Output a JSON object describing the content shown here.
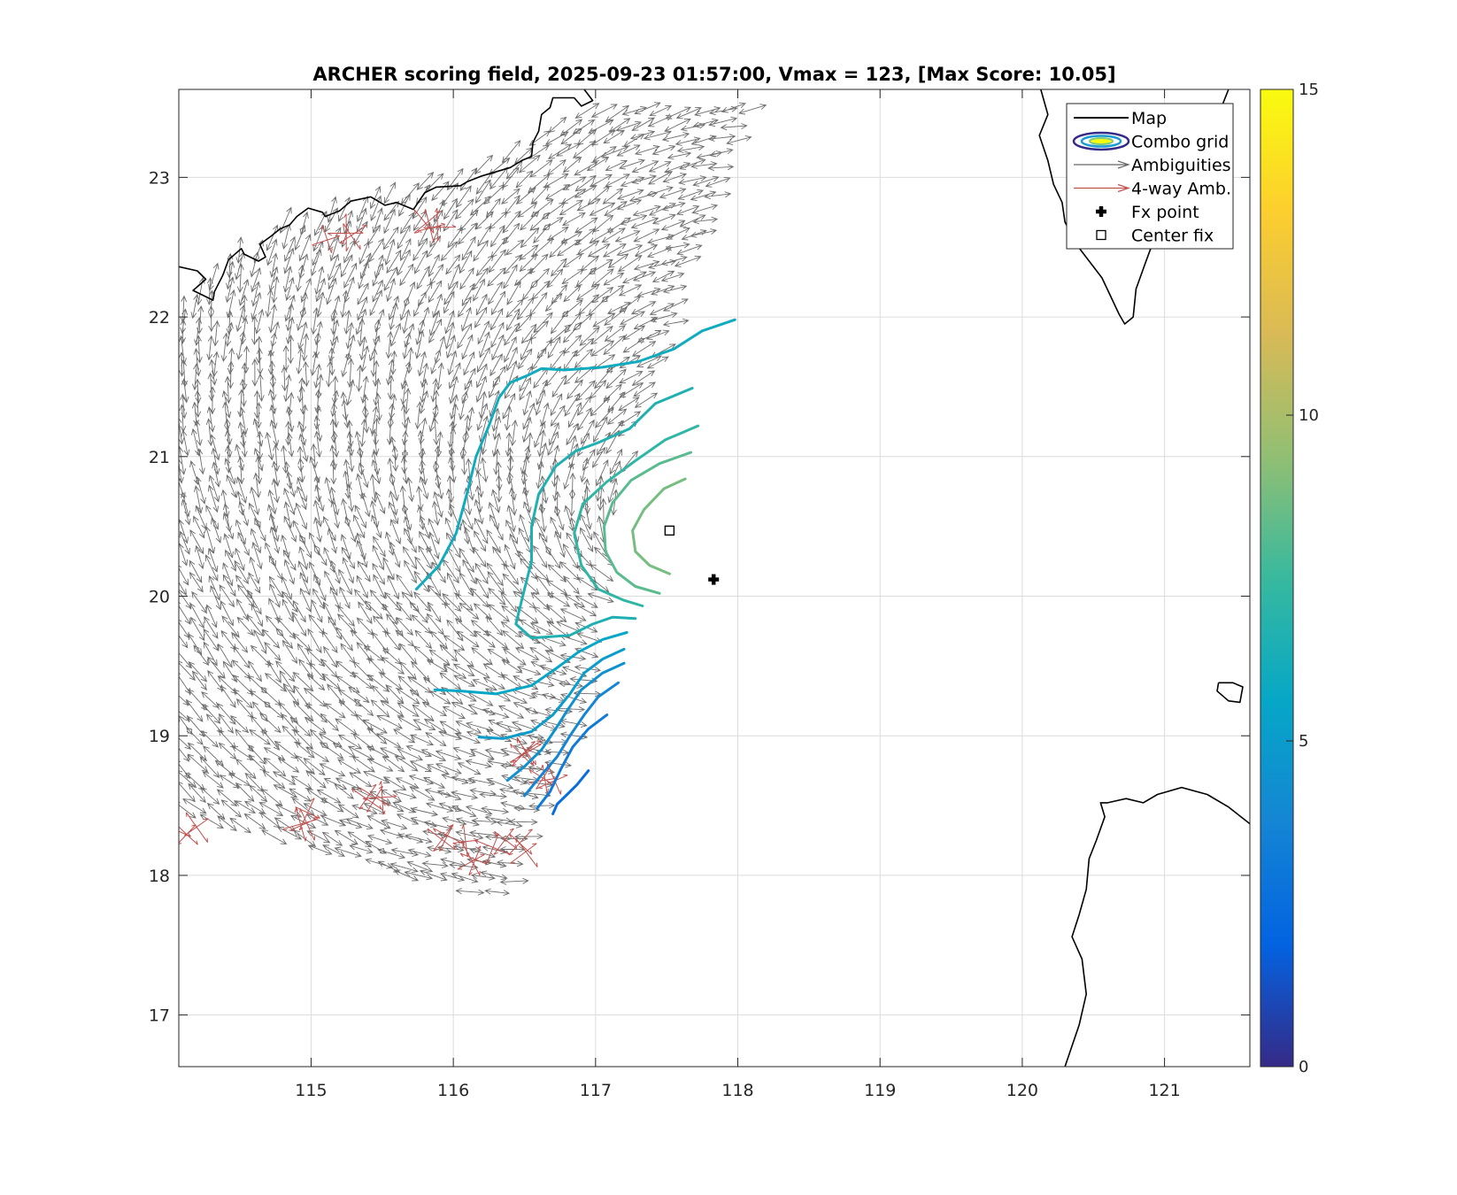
{
  "chart_data": {
    "type": "map-vector-contour",
    "title": "ARCHER scoring field, 2025-09-23 01:57:00, Vmax = 123, [Max Score: 10.05]",
    "xlabel": "",
    "ylabel": "",
    "xlim": [
      114.07,
      121.6
    ],
    "ylim": [
      16.63,
      23.63
    ],
    "x_ticks": [
      115,
      116,
      117,
      118,
      119,
      120,
      121
    ],
    "y_ticks": [
      17,
      18,
      19,
      20,
      21,
      22,
      23
    ],
    "x_tick_labels": [
      "115",
      "116",
      "117",
      "118",
      "119",
      "120",
      "121"
    ],
    "y_tick_labels": [
      "17",
      "18",
      "19",
      "20",
      "21",
      "22",
      "23"
    ],
    "grid": true,
    "legend_position": "top-right",
    "legend": [
      {
        "name": "Map",
        "symbol": "line",
        "color": "#000000"
      },
      {
        "name": "Combo grid",
        "symbol": "ellipses",
        "color": "#2c3ea8"
      },
      {
        "name": "Ambiguities",
        "symbol": "arrow",
        "color": "#666666"
      },
      {
        "name": "4-way Amb.",
        "symbol": "arrow",
        "color": "#c0504d"
      },
      {
        "name": "Fx point",
        "symbol": "plus",
        "color": "#000000"
      },
      {
        "name": "Center fix",
        "symbol": "square",
        "color": "#000000"
      }
    ],
    "colorbar": {
      "min": 0,
      "max": 15,
      "ticks": [
        0,
        5,
        10,
        15
      ],
      "tick_labels": [
        "0",
        "5",
        "10",
        "15"
      ],
      "colormap": "parula",
      "stops": [
        "#352a87",
        "#0363e1",
        "#1485d4",
        "#06a7c6",
        "#38b99e",
        "#92bf73",
        "#d9ba56",
        "#fcce2e",
        "#f9fb0e"
      ]
    },
    "fx_point": {
      "lon": 117.83,
      "lat": 20.12
    },
    "center_fix": {
      "lon": 117.52,
      "lat": 20.47
    },
    "contours": [
      {
        "level": 8.8,
        "points": [
          [
            117.63,
            20.84
          ],
          [
            117.48,
            20.77
          ],
          [
            117.34,
            20.62
          ],
          [
            117.26,
            20.47
          ],
          [
            117.28,
            20.32
          ],
          [
            117.38,
            20.22
          ],
          [
            117.52,
            20.16
          ]
        ]
      },
      {
        "level": 8.2,
        "points": [
          [
            117.67,
            21.03
          ],
          [
            117.45,
            20.95
          ],
          [
            117.25,
            20.83
          ],
          [
            117.12,
            20.67
          ],
          [
            117.06,
            20.5
          ],
          [
            117.07,
            20.32
          ],
          [
            117.15,
            20.17
          ],
          [
            117.28,
            20.07
          ],
          [
            117.45,
            20.02
          ]
        ]
      },
      {
        "level": 7.2,
        "points": [
          [
            117.72,
            21.22
          ],
          [
            117.49,
            21.12
          ],
          [
            117.28,
            20.97
          ],
          [
            117.08,
            20.82
          ],
          [
            116.91,
            20.66
          ],
          [
            116.85,
            20.45
          ],
          [
            116.9,
            20.22
          ],
          [
            117.02,
            20.05
          ],
          [
            117.2,
            19.97
          ],
          [
            117.33,
            19.93
          ]
        ]
      },
      {
        "level": 6.6,
        "points": [
          [
            117.68,
            21.49
          ],
          [
            117.42,
            21.38
          ],
          [
            117.24,
            21.2
          ],
          [
            117.02,
            21.1
          ],
          [
            116.86,
            21.04
          ],
          [
            116.72,
            20.93
          ],
          [
            116.6,
            20.73
          ],
          [
            116.55,
            20.5
          ],
          [
            116.55,
            20.25
          ],
          [
            116.5,
            20.05
          ],
          [
            116.44,
            19.8
          ],
          [
            116.55,
            19.7
          ],
          [
            116.82,
            19.72
          ],
          [
            116.98,
            19.8
          ],
          [
            117.12,
            19.85
          ],
          [
            117.28,
            19.84
          ]
        ]
      },
      {
        "level": 6.0,
        "points": [
          [
            117.98,
            21.98
          ],
          [
            117.75,
            21.9
          ],
          [
            117.55,
            21.77
          ],
          [
            117.3,
            21.68
          ],
          [
            117.05,
            21.64
          ],
          [
            116.78,
            21.62
          ],
          [
            116.62,
            21.63
          ],
          [
            116.52,
            21.58
          ],
          [
            116.4,
            21.53
          ],
          [
            116.32,
            21.42
          ],
          [
            116.25,
            21.22
          ],
          [
            116.16,
            21.0
          ],
          [
            116.1,
            20.75
          ],
          [
            116.02,
            20.45
          ],
          [
            115.9,
            20.22
          ],
          [
            115.74,
            20.05
          ]
        ]
      },
      {
        "level": 5.6,
        "points": [
          [
            117.22,
            19.74
          ],
          [
            117.05,
            19.69
          ],
          [
            116.88,
            19.6
          ],
          [
            116.72,
            19.48
          ],
          [
            116.55,
            19.36
          ],
          [
            116.3,
            19.3
          ],
          [
            116.06,
            19.32
          ],
          [
            115.87,
            19.33
          ]
        ]
      },
      {
        "level": 5.0,
        "points": [
          [
            117.2,
            19.62
          ],
          [
            117.05,
            19.55
          ],
          [
            116.92,
            19.45
          ],
          [
            116.82,
            19.3
          ],
          [
            116.7,
            19.15
          ],
          [
            116.55,
            19.03
          ],
          [
            116.35,
            18.98
          ],
          [
            116.18,
            18.99
          ]
        ]
      },
      {
        "level": 4.4,
        "points": [
          [
            117.2,
            19.52
          ],
          [
            117.05,
            19.45
          ],
          [
            116.9,
            19.33
          ],
          [
            116.8,
            19.18
          ],
          [
            116.72,
            19.05
          ],
          [
            116.62,
            18.9
          ],
          [
            116.5,
            18.78
          ],
          [
            116.38,
            18.68
          ]
        ]
      },
      {
        "level": 3.8,
        "points": [
          [
            117.16,
            19.38
          ],
          [
            117.02,
            19.28
          ],
          [
            116.92,
            19.15
          ],
          [
            116.82,
            19.0
          ],
          [
            116.73,
            18.85
          ],
          [
            116.62,
            18.72
          ],
          [
            116.5,
            18.57
          ]
        ]
      },
      {
        "level": 3.2,
        "points": [
          [
            117.08,
            19.15
          ],
          [
            116.95,
            19.05
          ],
          [
            116.84,
            18.92
          ],
          [
            116.76,
            18.77
          ],
          [
            116.68,
            18.6
          ],
          [
            116.59,
            18.48
          ]
        ]
      },
      {
        "level": 2.4,
        "points": [
          [
            116.95,
            18.75
          ],
          [
            116.87,
            18.65
          ],
          [
            116.8,
            18.58
          ],
          [
            116.73,
            18.51
          ],
          [
            116.7,
            18.44
          ]
        ]
      }
    ],
    "coastlines": [
      [
        [
          114.07,
          22.36
        ],
        [
          114.2,
          22.33
        ],
        [
          114.26,
          22.27
        ],
        [
          114.17,
          22.19
        ],
        [
          114.31,
          22.12
        ],
        [
          114.32,
          22.18
        ],
        [
          114.38,
          22.3
        ],
        [
          114.42,
          22.41
        ],
        [
          114.51,
          22.49
        ],
        [
          114.53,
          22.45
        ],
        [
          114.63,
          22.4
        ],
        [
          114.68,
          22.43
        ],
        [
          114.64,
          22.52
        ],
        [
          114.72,
          22.58
        ],
        [
          114.78,
          22.63
        ],
        [
          114.85,
          22.66
        ],
        [
          114.9,
          22.72
        ],
        [
          114.98,
          22.78
        ],
        [
          115.08,
          22.75
        ],
        [
          115.1,
          22.72
        ],
        [
          115.2,
          22.76
        ],
        [
          115.28,
          22.83
        ],
        [
          115.42,
          22.86
        ],
        [
          115.52,
          22.8
        ],
        [
          115.6,
          22.82
        ],
        [
          115.72,
          22.77
        ],
        [
          115.8,
          22.89
        ],
        [
          115.88,
          22.93
        ],
        [
          116.05,
          22.94
        ],
        [
          116.1,
          22.97
        ],
        [
          116.2,
          23.01
        ],
        [
          116.4,
          23.07
        ],
        [
          116.48,
          23.12
        ],
        [
          116.55,
          23.15
        ],
        [
          116.56,
          23.25
        ],
        [
          116.6,
          23.33
        ],
        [
          116.62,
          23.45
        ],
        [
          116.68,
          23.5
        ],
        [
          116.7,
          23.57
        ],
        [
          116.85,
          23.57
        ],
        [
          116.9,
          23.51
        ],
        [
          116.98,
          23.55
        ],
        [
          116.92,
          23.63
        ]
      ],
      [
        [
          120.13,
          23.63
        ],
        [
          120.18,
          23.45
        ],
        [
          120.12,
          23.3
        ],
        [
          120.18,
          23.12
        ],
        [
          120.22,
          22.95
        ],
        [
          120.28,
          22.82
        ],
        [
          120.3,
          22.68
        ],
        [
          120.38,
          22.52
        ],
        [
          120.56,
          22.28
        ],
        [
          120.68,
          22.02
        ],
        [
          120.72,
          21.95
        ],
        [
          120.78,
          22.0
        ],
        [
          120.8,
          22.2
        ],
        [
          120.87,
          22.4
        ],
        [
          120.95,
          22.62
        ],
        [
          121.05,
          22.8
        ],
        [
          121.18,
          23.0
        ],
        [
          121.32,
          23.25
        ],
        [
          121.38,
          23.45
        ],
        [
          121.45,
          23.63
        ]
      ],
      [
        [
          121.38,
          19.38
        ],
        [
          121.48,
          19.38
        ],
        [
          121.55,
          19.35
        ],
        [
          121.53,
          19.24
        ],
        [
          121.45,
          19.25
        ],
        [
          121.37,
          19.32
        ],
        [
          121.38,
          19.38
        ]
      ],
      [
        [
          121.6,
          18.37
        ],
        [
          121.45,
          18.49
        ],
        [
          121.3,
          18.58
        ],
        [
          121.12,
          18.63
        ],
        [
          120.95,
          18.58
        ],
        [
          120.85,
          18.52
        ],
        [
          120.73,
          18.55
        ],
        [
          120.6,
          18.52
        ],
        [
          120.55,
          18.52
        ],
        [
          120.58,
          18.42
        ],
        [
          120.52,
          18.25
        ],
        [
          120.47,
          18.12
        ],
        [
          120.45,
          17.9
        ],
        [
          120.4,
          17.72
        ],
        [
          120.35,
          17.56
        ],
        [
          120.42,
          17.4
        ],
        [
          120.45,
          17.15
        ],
        [
          120.4,
          16.93
        ],
        [
          120.3,
          16.63
        ]
      ]
    ],
    "ambiguities": {
      "color": "#555555",
      "description": "gray wind-ambiguity arrows covering the swath west of ~118E, north of ~17.9N",
      "bounds": {
        "lon": [
          114.07,
          118.2
        ],
        "lat": [
          17.85,
          23.55
        ]
      }
    },
    "four_way_ambiguities": {
      "color": "#c0504d",
      "clusters": [
        [
          115.2,
          22.6
        ],
        [
          115.8,
          22.63
        ],
        [
          114.1,
          18.35
        ],
        [
          114.95,
          18.4
        ],
        [
          115.45,
          18.55
        ],
        [
          116.0,
          18.3
        ],
        [
          116.2,
          18.15
        ],
        [
          116.45,
          18.2
        ],
        [
          116.62,
          18.68
        ],
        [
          116.55,
          18.9
        ]
      ]
    }
  }
}
